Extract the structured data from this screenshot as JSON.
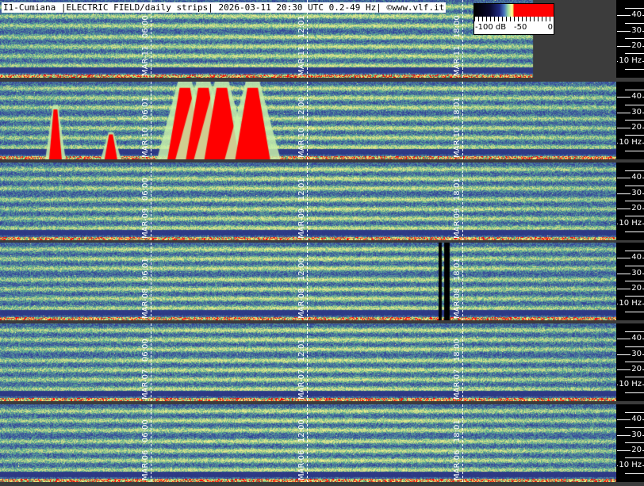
{
  "title": "I1-Cumiana |ELECTRIC FIELD/daily strips| 2026-03-11 20:30 UTC 0.2-49 Hz| ©www.vlf.it",
  "colorbar": {
    "labels": [
      "-100 dB",
      "-50",
      "0"
    ],
    "range_db": [
      -100,
      0
    ]
  },
  "chart_data": {
    "type": "heatmap",
    "title": "I1-Cumiana |ELECTRIC FIELD/daily strips| 2026-03-11 20:30 UTC 0.2-49 Hz| ©www.vlf.it",
    "y_range_hz": [
      0.2,
      49
    ],
    "y_ticks": [
      "40",
      "30",
      "20",
      "10 Hz"
    ],
    "y_tick_values": [
      40,
      30,
      20,
      10
    ],
    "colormap": "black-blue-green-yellow-red",
    "strips": [
      {
        "date": "MAR-11",
        "times": [
          "06:00",
          "12:01",
          "18:00"
        ],
        "complete_fraction": 0.86,
        "red_blobs": []
      },
      {
        "date": "MAR-10",
        "times": [
          "06:01",
          "12:00",
          "18:01"
        ],
        "complete_fraction": 1,
        "red_blobs": [
          [
            0.09,
            0.7
          ],
          [
            0.18,
            0.35
          ],
          [
            0.3,
            1
          ],
          [
            0.33,
            1
          ],
          [
            0.36,
            1
          ],
          [
            0.41,
            1
          ]
        ]
      },
      {
        "date": "MAR-09",
        "times": [
          "06:00",
          "12:01",
          "18:01"
        ],
        "complete_fraction": 1,
        "red_blobs": []
      },
      {
        "date": "MAR-08",
        "times": [
          "06:01",
          "12:00",
          "18:01"
        ],
        "complete_fraction": 1,
        "red_blobs": []
      },
      {
        "date": "MAR-07",
        "times": [
          "06:00",
          "12:01",
          "18:00"
        ],
        "complete_fraction": 1,
        "red_blobs": []
      },
      {
        "date": "MAR-06",
        "times": [
          "06:00",
          "12:00",
          "18:01"
        ],
        "complete_fraction": 1,
        "red_blobs": []
      }
    ],
    "colors": {
      "background": "#3c3c3c",
      "axis_panel": "#000000",
      "saturated": "#ff0000"
    }
  }
}
